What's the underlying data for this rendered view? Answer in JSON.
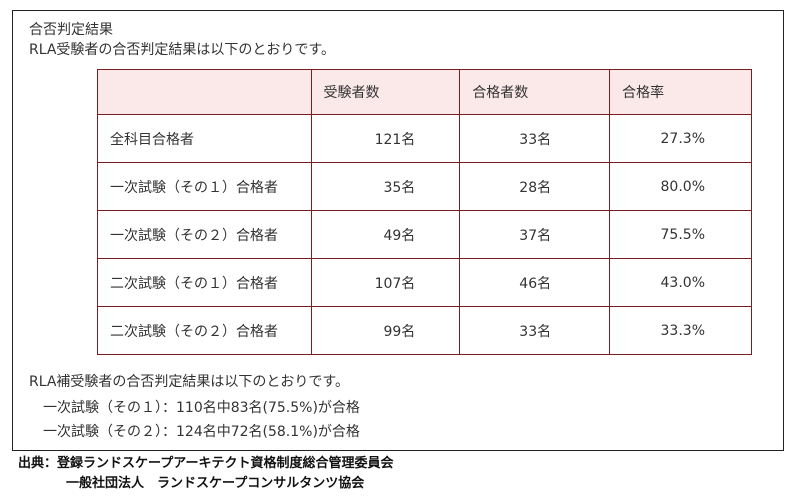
{
  "heading": {
    "title": "合否判定結果",
    "subtitle": "RLA受験者の合否判定結果は以下のとおりです。"
  },
  "table": {
    "columns": [
      "",
      "受験者数",
      "合格者数",
      "合格率"
    ],
    "rows": [
      {
        "label": "全科目合格者",
        "examinees": "121名",
        "passed": "33名",
        "rate": "27.3%"
      },
      {
        "label": "一次試験（その１）合格者",
        "examinees": "35名",
        "passed": "28名",
        "rate": "80.0%"
      },
      {
        "label": "一次試験（その２）合格者",
        "examinees": "49名",
        "passed": "37名",
        "rate": "75.5%"
      },
      {
        "label": "二次試験（その１）合格者",
        "examinees": "107名",
        "passed": "46名",
        "rate": "43.0%"
      },
      {
        "label": "二次試験（その２）合格者",
        "examinees": "99名",
        "passed": "33名",
        "rate": "33.3%"
      }
    ]
  },
  "hosei": {
    "intro": "RLA補受験者の合否判定結果は以下のとおりです。",
    "lines": [
      "一次試験（その１）：110名中83名(75.5%)が合格",
      "一次試験（その２）：124名中72名(58.1%)が合格"
    ]
  },
  "source": {
    "line1": "出典：登録ランドスケープアーキテクト資格制度総合管理委員会",
    "line2": "一般社団法人　ランドスケープコンサルタンツ協会"
  },
  "colors": {
    "table_border": "#7a1e22",
    "header_bg": "#fbe9ea"
  }
}
